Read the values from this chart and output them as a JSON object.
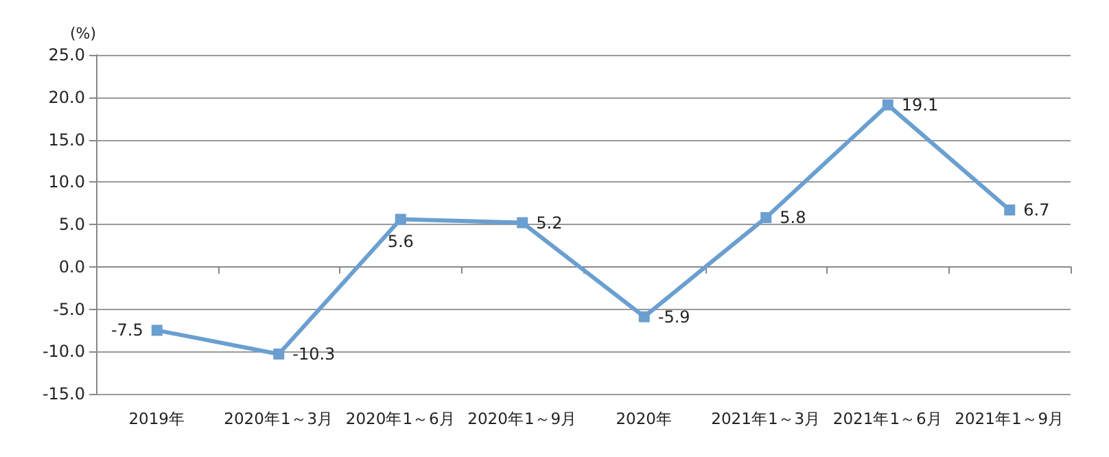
{
  "chart_data": {
    "type": "line",
    "ylabel": "(%)",
    "categories": [
      "2019年",
      "2020年1～3月",
      "2020年1～6月",
      "2020年1～9月",
      "2020年",
      "2021年1～3月",
      "2021年1～6月",
      "2021年1～9月"
    ],
    "series": [
      {
        "color": "#6a9fd0",
        "values": [
          -7.5,
          -10.3,
          5.6,
          5.2,
          -5.9,
          5.8,
          19.1,
          6.7
        ]
      }
    ],
    "ylim": [
      -15,
      25
    ],
    "yticks": [
      {
        "value": -15,
        "label": "-15.0"
      },
      {
        "value": -10,
        "label": "-10.0"
      },
      {
        "value": -5,
        "label": "-5.0"
      },
      {
        "value": 0,
        "label": "0.0"
      },
      {
        "value": 5,
        "label": "5.0"
      },
      {
        "value": 10,
        "label": "10.0"
      },
      {
        "value": 15,
        "label": "15.0"
      },
      {
        "value": 20,
        "label": "20.0"
      },
      {
        "value": 25,
        "label": "25.0"
      }
    ],
    "grid": "y",
    "marker": "square",
    "line_style": "solid",
    "data_labels": true
  }
}
